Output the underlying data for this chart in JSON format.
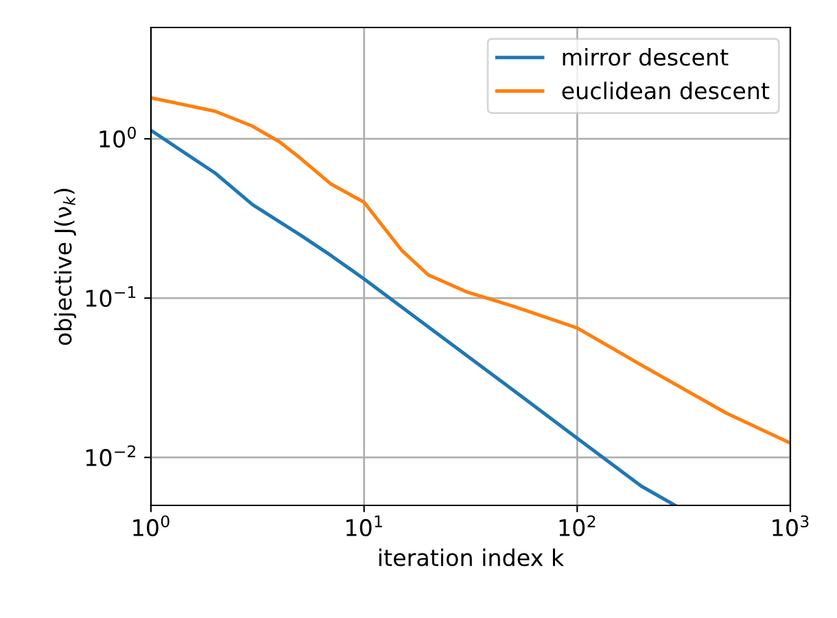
{
  "chart_data": {
    "type": "line",
    "xlabel": "iteration index k",
    "ylabel": "objective J(ν$_{k}$)",
    "log": "xy",
    "xlim": [
      1,
      1000
    ],
    "ylim": [
      0.005,
      5
    ],
    "xticks": [
      {
        "value": 1,
        "label": "10$^{0}$"
      },
      {
        "value": 10,
        "label": "10$^{1}$"
      },
      {
        "value": 100,
        "label": "10$^{2}$"
      },
      {
        "value": 1000,
        "label": "10$^{3}$"
      }
    ],
    "yticks": [
      {
        "value": 0.01,
        "label": "10$^{−2}$"
      },
      {
        "value": 0.1,
        "label": "10$^{−1}$"
      },
      {
        "value": 1,
        "label": "10$^{0}$"
      }
    ],
    "grid": true,
    "legend": "top right",
    "series": [
      {
        "name": "mirror descent",
        "color": "#1f77b4",
        "x": [
          1,
          2,
          3,
          5,
          7,
          10,
          20,
          50,
          100,
          200,
          288
        ],
        "values": [
          1.13,
          0.61,
          0.386,
          0.25,
          0.185,
          0.132,
          0.066,
          0.0265,
          0.0132,
          0.0066,
          0.005
        ]
      },
      {
        "name": "euclidean descent",
        "color": "#ff7f0e",
        "x": [
          1,
          2,
          3,
          4,
          5,
          7,
          10,
          15,
          20,
          30,
          50,
          100,
          200,
          500,
          1000
        ],
        "values": [
          1.81,
          1.49,
          1.2,
          0.96,
          0.76,
          0.52,
          0.4,
          0.2,
          0.14,
          0.11,
          0.089,
          0.065,
          0.038,
          0.019,
          0.0123
        ]
      }
    ]
  }
}
